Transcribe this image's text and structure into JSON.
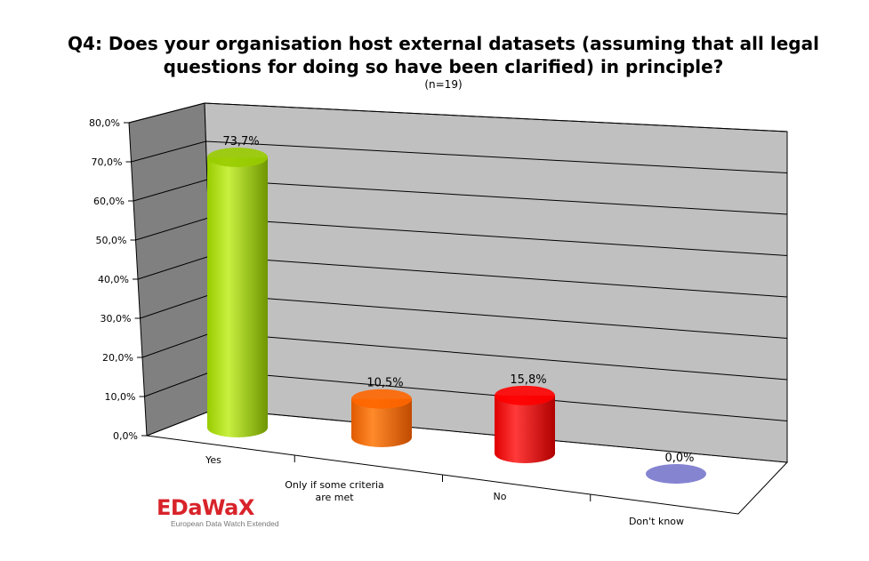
{
  "chart_data": {
    "type": "bar",
    "title_lines": [
      "Q4: Does your organisation host external datasets (assuming that all legal",
      "questions for doing so have been clarified) in principle?"
    ],
    "subtitle": "(n=19)",
    "categories": [
      "Yes",
      "Only if some criteria\nare met",
      "No",
      "Don't know"
    ],
    "values": [
      73.7,
      10.5,
      15.8,
      0.0
    ],
    "data_labels": [
      "73,7%",
      "10,5%",
      "15,8%",
      "0,0%"
    ],
    "bar_colors": [
      "#99cc00",
      "#ff6600",
      "#ff0000",
      "#7777cc"
    ],
    "ylim": [
      0,
      80
    ],
    "yticks": [
      0,
      10,
      20,
      30,
      40,
      50,
      60,
      70,
      80
    ],
    "ytick_labels": [
      "0,0%",
      "10,0%",
      "20,0%",
      "30,0%",
      "40,0%",
      "50,0%",
      "60,0%",
      "70,0%",
      "80,0%"
    ],
    "grid": true,
    "legend": "none",
    "xlabel": "",
    "ylabel": ""
  },
  "logo": {
    "mark": "EDaWaX",
    "tagline": "European Data Watch Extended"
  },
  "colors": {
    "wall": "#c0c0c0",
    "side_wall": "#808080",
    "floor": "#ffffff",
    "logo_red": "#d8232a"
  }
}
